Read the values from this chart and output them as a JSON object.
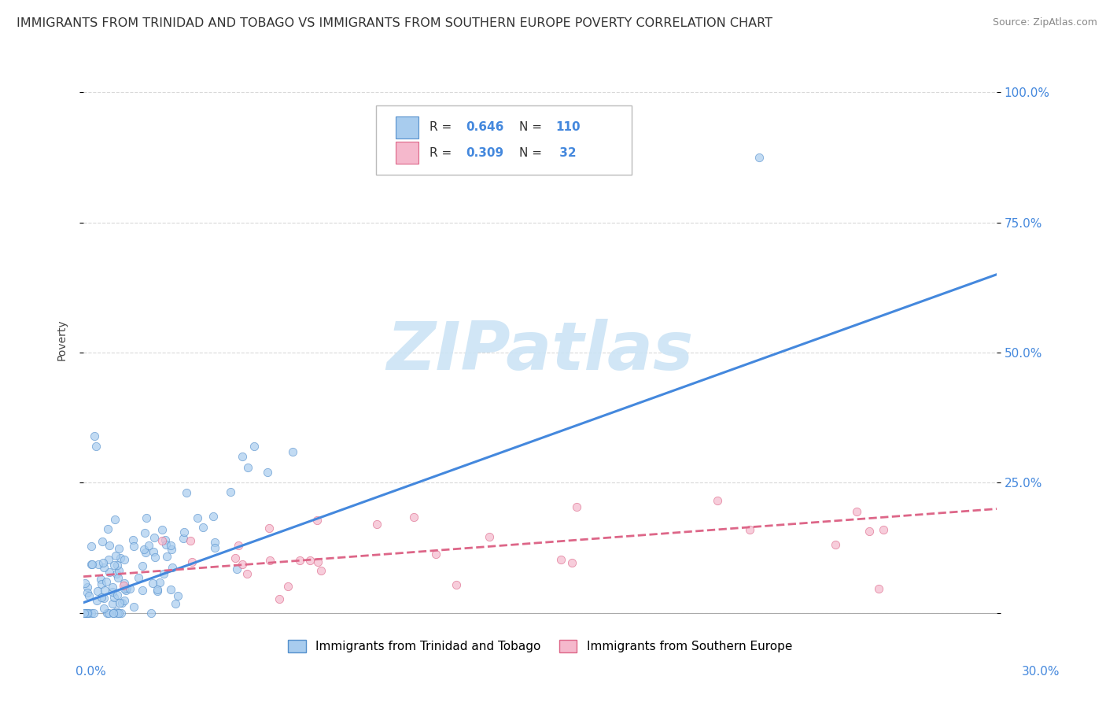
{
  "title": "IMMIGRANTS FROM TRINIDAD AND TOBAGO VS IMMIGRANTS FROM SOUTHERN EUROPE POVERTY CORRELATION CHART",
  "source": "Source: ZipAtlas.com",
  "ylabel": "Poverty",
  "yticks": [
    0.0,
    0.25,
    0.5,
    0.75,
    1.0
  ],
  "ytick_labels": [
    "",
    "25.0%",
    "50.0%",
    "75.0%",
    "100.0%"
  ],
  "xlim": [
    0.0,
    0.3
  ],
  "ylim": [
    -0.03,
    1.08
  ],
  "series1": {
    "name": "Immigrants from Trinidad and Tobago",
    "color": "#a8ccee",
    "edge_color": "#5590cc",
    "line_color": "#4488dd",
    "R": 0.646,
    "N": 110,
    "scatter_alpha": 0.7,
    "marker_size": 55
  },
  "series2": {
    "name": "Immigrants from Southern Europe",
    "color": "#f5b8cc",
    "edge_color": "#dd6688",
    "line_color": "#dd6688",
    "R": 0.309,
    "N": 32,
    "scatter_alpha": 0.7,
    "marker_size": 55
  },
  "blue_line": [
    0.0,
    0.02,
    0.3,
    0.65
  ],
  "pink_line": [
    0.0,
    0.07,
    0.3,
    0.2
  ],
  "watermark_text": "ZIPatlas",
  "watermark_color": "#cce4f5",
  "background_color": "#ffffff",
  "grid_color": "#d0d0d0",
  "title_fontsize": 11.5,
  "tick_fontsize": 11,
  "source_fontsize": 9
}
